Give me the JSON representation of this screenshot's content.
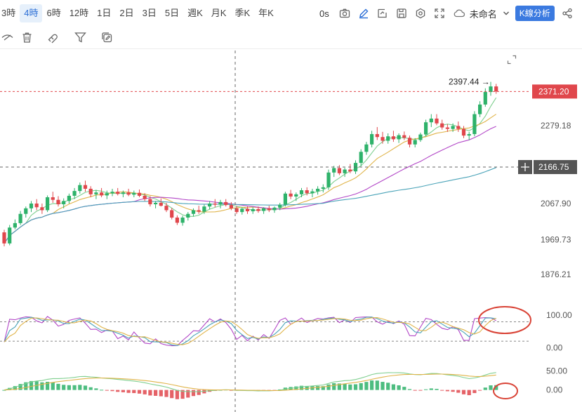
{
  "toolbar": {
    "timeframes": [
      "3時",
      "4時",
      "6時",
      "12時",
      "1日",
      "2日",
      "3日",
      "5日",
      "週K",
      "月K",
      "季K",
      "年K"
    ],
    "active_timeframe": "4時",
    "seconds_label": "0s",
    "layout_name": "未命名",
    "analysis_button": "K線分析",
    "icons": [
      "camera-icon",
      "pencil-icon",
      "alert-add-icon",
      "save-icon",
      "gear-icon",
      "fullscreen-icon",
      "cloud-icon",
      "chevron-down-icon",
      "share-icon"
    ]
  },
  "drawbar": {
    "icons": [
      "hide-drawings-icon",
      "trash-icon",
      "magnet-icon",
      "filter-icon",
      "copy-edit-icon"
    ]
  },
  "chart_data": [
    {
      "type": "candlestick",
      "panel": "price",
      "y_ticks": [
        2279.18,
        2166.75,
        2067.9,
        1969.73,
        1876.21
      ],
      "ylim": [
        1840,
        2410
      ],
      "last_price": 2371.2,
      "last_price_color": "#e0474c",
      "crosshair_price": 2166.75,
      "high_marker": 2397.44,
      "up_color": "#2eb26a",
      "down_color": "#e0474c",
      "candles": [
        [
          1990,
          1997,
          1952,
          1960
        ],
        [
          1960,
          2010,
          1955,
          2003
        ],
        [
          2003,
          2025,
          1998,
          2015
        ],
        [
          2015,
          2048,
          2010,
          2040
        ],
        [
          2040,
          2060,
          2030,
          2055
        ],
        [
          2055,
          2075,
          2045,
          2068
        ],
        [
          2068,
          2080,
          2050,
          2058
        ],
        [
          2058,
          2068,
          2040,
          2050
        ],
        [
          2050,
          2090,
          2045,
          2085
        ],
        [
          2085,
          2100,
          2070,
          2078
        ],
        [
          2078,
          2088,
          2060,
          2066
        ],
        [
          2066,
          2082,
          2055,
          2075
        ],
        [
          2075,
          2095,
          2068,
          2089
        ],
        [
          2089,
          2110,
          2080,
          2102
        ],
        [
          2102,
          2125,
          2095,
          2118
        ],
        [
          2118,
          2130,
          2100,
          2108
        ],
        [
          2108,
          2115,
          2085,
          2093
        ],
        [
          2093,
          2105,
          2080,
          2098
        ],
        [
          2098,
          2110,
          2085,
          2090
        ],
        [
          2090,
          2103,
          2080,
          2096
        ],
        [
          2096,
          2108,
          2088,
          2100
        ],
        [
          2100,
          2110,
          2090,
          2094
        ],
        [
          2094,
          2103,
          2085,
          2098
        ],
        [
          2098,
          2108,
          2088,
          2092
        ],
        [
          2092,
          2103,
          2085,
          2097
        ],
        [
          2097,
          2106,
          2085,
          2089
        ],
        [
          2089,
          2096,
          2075,
          2080
        ],
        [
          2080,
          2088,
          2060,
          2066
        ],
        [
          2066,
          2075,
          2055,
          2070
        ],
        [
          2070,
          2082,
          2060,
          2062
        ],
        [
          2062,
          2070,
          2045,
          2050
        ],
        [
          2050,
          2056,
          2025,
          2030
        ],
        [
          2030,
          2036,
          2010,
          2016
        ],
        [
          2016,
          2035,
          2008,
          2030
        ],
        [
          2030,
          2045,
          2022,
          2040
        ],
        [
          2040,
          2055,
          2033,
          2050
        ],
        [
          2050,
          2062,
          2040,
          2046
        ],
        [
          2046,
          2065,
          2040,
          2060
        ],
        [
          2060,
          2075,
          2052,
          2068
        ],
        [
          2068,
          2080,
          2058,
          2065
        ],
        [
          2065,
          2078,
          2055,
          2072
        ],
        [
          2072,
          2080,
          2060,
          2064
        ],
        [
          2064,
          2072,
          2050,
          2055
        ],
        [
          2055,
          2062,
          2040,
          2045
        ],
        [
          2045,
          2058,
          2038,
          2054
        ],
        [
          2054,
          2060,
          2040,
          2047
        ],
        [
          2047,
          2058,
          2040,
          2053
        ],
        [
          2053,
          2060,
          2043,
          2048
        ],
        [
          2048,
          2058,
          2040,
          2055
        ],
        [
          2055,
          2062,
          2045,
          2050
        ],
        [
          2050,
          2060,
          2043,
          2057
        ],
        [
          2057,
          2070,
          2050,
          2065
        ],
        [
          2065,
          2100,
          2060,
          2095
        ],
        [
          2095,
          2105,
          2080,
          2087
        ],
        [
          2087,
          2098,
          2075,
          2093
        ],
        [
          2093,
          2110,
          2085,
          2104
        ],
        [
          2104,
          2112,
          2090,
          2096
        ],
        [
          2096,
          2108,
          2085,
          2101
        ],
        [
          2101,
          2115,
          2092,
          2108
        ],
        [
          2108,
          2120,
          2098,
          2112
        ],
        [
          2112,
          2160,
          2105,
          2152
        ],
        [
          2152,
          2170,
          2140,
          2164
        ],
        [
          2164,
          2172,
          2145,
          2150
        ],
        [
          2150,
          2165,
          2140,
          2160
        ],
        [
          2160,
          2175,
          2150,
          2155
        ],
        [
          2155,
          2185,
          2148,
          2178
        ],
        [
          2178,
          2215,
          2170,
          2208
        ],
        [
          2208,
          2235,
          2200,
          2228
        ],
        [
          2228,
          2265,
          2220,
          2256
        ],
        [
          2256,
          2275,
          2240,
          2248
        ],
        [
          2248,
          2262,
          2230,
          2238
        ],
        [
          2238,
          2258,
          2230,
          2250
        ],
        [
          2250,
          2265,
          2235,
          2242
        ],
        [
          2242,
          2258,
          2232,
          2253
        ],
        [
          2253,
          2263,
          2240,
          2246
        ],
        [
          2246,
          2252,
          2220,
          2228
        ],
        [
          2228,
          2245,
          2220,
          2240
        ],
        [
          2240,
          2260,
          2235,
          2255
        ],
        [
          2255,
          2295,
          2250,
          2288
        ],
        [
          2288,
          2310,
          2275,
          2298
        ],
        [
          2298,
          2310,
          2280,
          2285
        ],
        [
          2285,
          2295,
          2268,
          2274
        ],
        [
          2274,
          2283,
          2262,
          2270
        ],
        [
          2270,
          2285,
          2262,
          2278
        ],
        [
          2278,
          2290,
          2262,
          2270
        ],
        [
          2270,
          2278,
          2245,
          2252
        ],
        [
          2252,
          2262,
          2240,
          2256
        ],
        [
          2256,
          2318,
          2250,
          2310
        ],
        [
          2310,
          2345,
          2302,
          2336
        ],
        [
          2336,
          2380,
          2330,
          2370
        ],
        [
          2370,
          2397.44,
          2360,
          2385
        ],
        [
          2385,
          2392,
          2365,
          2371.2
        ]
      ],
      "ma_short_color": "#7fcf8f",
      "ma_mid_color": "#e0b44a",
      "ma_long1_color": "#b246c7",
      "ma_long2_color": "#4aa3b8"
    },
    {
      "type": "line",
      "panel": "oscillator",
      "y_ticks": [
        100.0,
        0.0
      ],
      "ylim": [
        -10,
        120
      ],
      "series_colors": [
        "#b246c7",
        "#4aa3b8",
        "#e0b44a"
      ]
    },
    {
      "type": "bar",
      "panel": "macd",
      "y_ticks": [
        50.0,
        0.0
      ],
      "ylim": [
        -45,
        75
      ],
      "up_color": "#2eb26a",
      "down_color": "#e0474c",
      "line_colors": [
        "#7fcf8f",
        "#e0b44a"
      ]
    }
  ],
  "annotations": {
    "circle_color": "#d94336"
  }
}
